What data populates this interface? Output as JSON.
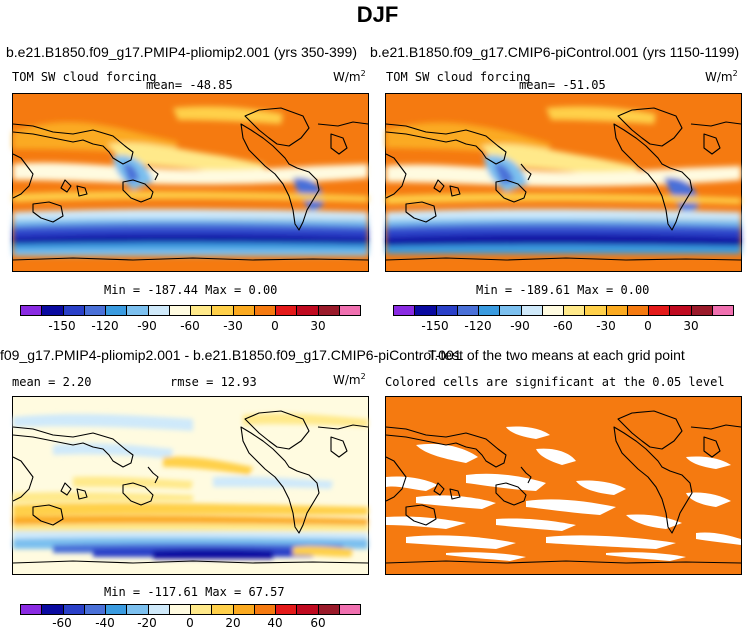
{
  "figure_title": "DJF",
  "units_label": "W/m",
  "units_exp": "2",
  "panels": {
    "p1": {
      "title": "b.e21.B1850.f09_g17.PMIP4-pliomip2.001 (yrs 350-399)",
      "variable": "TOM SW cloud forcing",
      "mean_text": "mean= -48.85",
      "minmax_text": "Min = -187.44  Max =    0.00"
    },
    "p2": {
      "title": "b.e21.B1850.f09_g17.CMIP6-piControl.001 (yrs 1150-1199)",
      "variable": "TOM SW cloud forcing",
      "mean_text": "mean= -51.05",
      "minmax_text": "Min = -189.61  Max =    0.00"
    },
    "p3": {
      "title": "f09_g17.PMIP4-pliomip2.001 - b.e21.B1850.f09_g17.CMIP6-piControl.001",
      "mean_text": "mean =   2.20",
      "rmse_text": "rmse =  12.93",
      "minmax_text": "Min = -117.61  Max =  67.57"
    },
    "p4": {
      "title": "T-test of the two means at each grid point",
      "subtitle": "Colored cells are significant at the 0.05 level"
    }
  },
  "chart_data": [
    {
      "type": "heatmap",
      "name": "abs-colorbar",
      "levels": [
        -165,
        -150,
        -135,
        -120,
        -105,
        -90,
        -75,
        -60,
        -45,
        -30,
        -15,
        0,
        15,
        30,
        45
      ],
      "tick_labels": [
        "-150",
        "-120",
        "-90",
        "-60",
        "-30",
        "0",
        "30"
      ],
      "colors": [
        "#8a2be2",
        "#0a0aa0",
        "#2a40c8",
        "#4a70d8",
        "#3a9be0",
        "#7cc0ef",
        "#cfe9fa",
        "#fffbe0",
        "#ffe98a",
        "#ffd04a",
        "#fbaa20",
        "#f57a10",
        "#e41a1a",
        "#c00a20",
        "#9a1a2a",
        "#f070b0"
      ]
    },
    {
      "type": "heatmap",
      "name": "diff-colorbar",
      "levels": [
        -70,
        -60,
        -50,
        -40,
        -30,
        -20,
        -10,
        0,
        10,
        20,
        30,
        40,
        50,
        60,
        70
      ],
      "tick_labels": [
        "-60",
        "-40",
        "-20",
        "0",
        "20",
        "40",
        "60"
      ],
      "colors": [
        "#8a2be2",
        "#0a0aa0",
        "#2a40c8",
        "#4a70d8",
        "#3a9be0",
        "#7cc0ef",
        "#cfe9fa",
        "#fffbe0",
        "#ffe98a",
        "#ffd04a",
        "#fbaa20",
        "#f57a10",
        "#e41a1a",
        "#c00a20",
        "#9a1a2a",
        "#f070b0"
      ]
    }
  ]
}
